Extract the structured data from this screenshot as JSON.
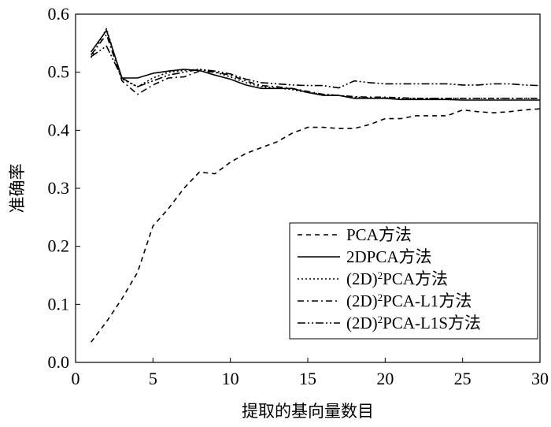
{
  "chart_data": {
    "type": "line",
    "xlabel": "提取的基向量数目",
    "ylabel": "准确率",
    "xlim": [
      0,
      30
    ],
    "ylim": [
      0,
      0.6
    ],
    "xticks": [
      0,
      5,
      10,
      15,
      20,
      25,
      30
    ],
    "xtick_labels": [
      "0",
      "5",
      "10",
      "15",
      "20",
      "25",
      "30"
    ],
    "yticks": [
      0,
      0.1,
      0.2,
      0.3,
      0.4,
      0.5,
      0.6
    ],
    "ytick_labels": [
      "0.0",
      "0.1",
      "0.2",
      "0.3",
      "0.4",
      "0.5",
      "0.6"
    ],
    "grid": false,
    "legend_position": "lower-right",
    "x": [
      1,
      2,
      3,
      4,
      5,
      6,
      7,
      8,
      9,
      10,
      11,
      12,
      13,
      14,
      15,
      16,
      17,
      18,
      19,
      20,
      21,
      22,
      23,
      24,
      25,
      26,
      27,
      28,
      29,
      30
    ],
    "series": [
      {
        "name": "PCA方法",
        "label_parts": [
          "PCA方法"
        ],
        "style": "dashed",
        "values": [
          0.035,
          0.07,
          0.11,
          0.155,
          0.235,
          0.265,
          0.3,
          0.328,
          0.325,
          0.345,
          0.36,
          0.37,
          0.38,
          0.395,
          0.405,
          0.405,
          0.403,
          0.403,
          0.41,
          0.42,
          0.42,
          0.425,
          0.425,
          0.425,
          0.435,
          0.432,
          0.43,
          0.432,
          0.435,
          0.437
        ]
      },
      {
        "name": "2DPCA方法",
        "label_parts": [
          "2DPCA方法"
        ],
        "style": "solid",
        "values": [
          0.535,
          0.572,
          0.49,
          0.49,
          0.498,
          0.502,
          0.505,
          0.503,
          0.495,
          0.488,
          0.478,
          0.472,
          0.472,
          0.472,
          0.465,
          0.46,
          0.46,
          0.455,
          0.455,
          0.455,
          0.453,
          0.453,
          0.453,
          0.453,
          0.452,
          0.452,
          0.452,
          0.452,
          0.452,
          0.452
        ]
      },
      {
        "name": "(2D)²PCA方法",
        "label_parts": [
          "(2D)",
          "2",
          "PCA方法"
        ],
        "style": "dotted",
        "values": [
          0.525,
          0.575,
          0.488,
          0.475,
          0.49,
          0.5,
          0.503,
          0.505,
          0.5,
          0.492,
          0.482,
          0.475,
          0.473,
          0.47,
          0.465,
          0.462,
          0.46,
          0.457,
          0.456,
          0.456,
          0.455,
          0.455,
          0.455,
          0.455,
          0.455,
          0.455,
          0.455,
          0.455,
          0.455,
          0.455
        ]
      },
      {
        "name": "(2D)²PCA-L1方法",
        "label_parts": [
          "(2D)",
          "2",
          "PCA-L1方法"
        ],
        "style": "dashdot",
        "values": [
          0.53,
          0.565,
          0.485,
          0.462,
          0.478,
          0.49,
          0.492,
          0.502,
          0.5,
          0.495,
          0.485,
          0.477,
          0.475,
          0.472,
          0.467,
          0.462,
          0.46,
          0.458,
          0.457,
          0.457,
          0.456,
          0.455,
          0.455,
          0.455,
          0.455,
          0.455,
          0.455,
          0.455,
          0.455,
          0.455
        ]
      },
      {
        "name": "(2D)²PCA-L1S方法",
        "label_parts": [
          "(2D)",
          "2",
          "PCA-L1S方法"
        ],
        "style": "dashdotdot",
        "values": [
          0.527,
          0.545,
          0.49,
          0.475,
          0.485,
          0.495,
          0.5,
          0.505,
          0.502,
          0.497,
          0.488,
          0.482,
          0.48,
          0.478,
          0.477,
          0.477,
          0.473,
          0.485,
          0.482,
          0.48,
          0.48,
          0.48,
          0.48,
          0.48,
          0.478,
          0.478,
          0.48,
          0.48,
          0.478,
          0.477
        ]
      }
    ]
  }
}
